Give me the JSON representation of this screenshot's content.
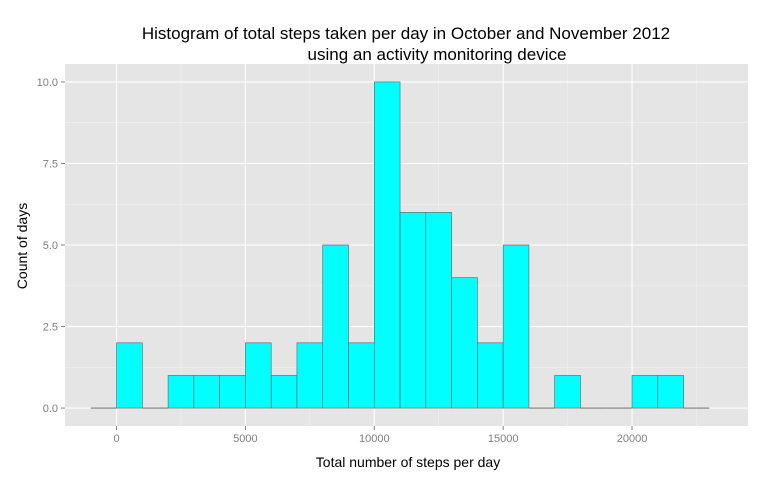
{
  "chart_data": {
    "type": "bar",
    "title_line1": "Histogram of total steps taken per day in October and November 2012",
    "title_line2": "using an activity monitoring device",
    "xlabel": "Total number of steps per day",
    "ylabel": "Count of days",
    "xlim": [
      -2000,
      24500
    ],
    "ylim": [
      -0.55,
      10.55
    ],
    "x_ticks": [
      0,
      5000,
      10000,
      15000,
      20000
    ],
    "x_tick_labels": [
      "0",
      "5000",
      "10000",
      "15000",
      "20000"
    ],
    "y_ticks": [
      0,
      2.5,
      5,
      7.5,
      10
    ],
    "y_tick_labels": [
      "0.0",
      "2.5",
      "5.0",
      "7.5",
      "10.0"
    ],
    "bin_width": 1000,
    "bins": [
      {
        "start": -1000,
        "end": 0,
        "count": 0
      },
      {
        "start": 0,
        "end": 1000,
        "count": 2
      },
      {
        "start": 1000,
        "end": 2000,
        "count": 0
      },
      {
        "start": 2000,
        "end": 3000,
        "count": 1
      },
      {
        "start": 3000,
        "end": 4000,
        "count": 1
      },
      {
        "start": 4000,
        "end": 5000,
        "count": 1
      },
      {
        "start": 5000,
        "end": 6000,
        "count": 2
      },
      {
        "start": 6000,
        "end": 7000,
        "count": 1
      },
      {
        "start": 7000,
        "end": 8000,
        "count": 2
      },
      {
        "start": 8000,
        "end": 9000,
        "count": 5
      },
      {
        "start": 9000,
        "end": 10000,
        "count": 2
      },
      {
        "start": 10000,
        "end": 11000,
        "count": 10
      },
      {
        "start": 11000,
        "end": 12000,
        "count": 6
      },
      {
        "start": 12000,
        "end": 13000,
        "count": 6
      },
      {
        "start": 13000,
        "end": 14000,
        "count": 4
      },
      {
        "start": 14000,
        "end": 15000,
        "count": 2
      },
      {
        "start": 15000,
        "end": 16000,
        "count": 5
      },
      {
        "start": 16000,
        "end": 17000,
        "count": 0
      },
      {
        "start": 17000,
        "end": 18000,
        "count": 1
      },
      {
        "start": 18000,
        "end": 19000,
        "count": 0
      },
      {
        "start": 19000,
        "end": 20000,
        "count": 0
      },
      {
        "start": 20000,
        "end": 21000,
        "count": 1
      },
      {
        "start": 21000,
        "end": 22000,
        "count": 1
      },
      {
        "start": 22000,
        "end": 23000,
        "count": 0
      }
    ],
    "grid": true,
    "legend": "none",
    "colors": {
      "bar_fill": "#00ffff",
      "bar_stroke": "#5f5f5f",
      "panel_background": "#e5e5e5",
      "grid_major": "#ffffff",
      "grid_minor": "#f2f2f2"
    }
  }
}
